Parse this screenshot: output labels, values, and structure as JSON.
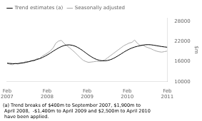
{
  "chart_data": {
    "type": "line",
    "ylabel": "$m",
    "x": [
      0,
      0.8136,
      1.6271,
      2.4407,
      3.2542,
      4.0678,
      4.8814,
      5.6949,
      6.5085,
      7.322,
      8.1356,
      8.9492,
      9.7627,
      10.5763,
      11.3898,
      12.2034,
      13.0169,
      13.8305,
      14.6441,
      15.4576,
      16.2712,
      17.0847,
      17.8983,
      18.7119,
      19.5254,
      20.339,
      21.1525,
      21.9661,
      22.7797,
      23.5932,
      24.4068,
      25.2203,
      26.0339,
      26.8475,
      27.661,
      28.4746,
      29.2881,
      30.1017,
      30.9153,
      31.7288,
      32.5424,
      33.3559,
      34.1695,
      34.9831,
      35.7966,
      36.6102,
      37.4237,
      38.2373,
      39.0508,
      39.8644,
      40.678,
      41.4915,
      42.3051,
      43.1186,
      43.9322,
      44.7458,
      45.5593,
      46.3729,
      47.1864,
      48
    ],
    "xlim": [
      0,
      48
    ],
    "xticks": [
      {
        "value": 0,
        "label": "Feb\n2007"
      },
      {
        "value": 12,
        "label": "Feb\n2008"
      },
      {
        "value": 24,
        "label": "Feb\n2009"
      },
      {
        "value": 36,
        "label": "Feb\n2010"
      },
      {
        "value": 48,
        "label": "Feb\n2011"
      }
    ],
    "ylim": [
      10000,
      29000
    ],
    "yticks": [
      10000,
      16000,
      22000,
      28000
    ],
    "grid": false,
    "legend": "upper left",
    "series": [
      {
        "name": "Trend estimates (a)",
        "color": "#000000",
        "values": [
          15500,
          15430,
          15380,
          15360,
          15400,
          15480,
          15600,
          15760,
          15950,
          16150,
          16380,
          16600,
          16870,
          17200,
          17600,
          18050,
          18550,
          19080,
          19580,
          20050,
          20450,
          20750,
          20920,
          20950,
          20830,
          20580,
          20200,
          19720,
          19160,
          18560,
          17970,
          17430,
          16970,
          16610,
          16360,
          16230,
          16210,
          16310,
          16530,
          16850,
          17280,
          17760,
          18270,
          18780,
          19260,
          19680,
          20030,
          20310,
          20530,
          20710,
          20870,
          20990,
          21020,
          20970,
          20860,
          20720,
          20580,
          20450,
          20340,
          20250
        ]
      },
      {
        "name": "Seasonally adjusted",
        "color": "#aaaaaa",
        "values": [
          15480,
          15200,
          15050,
          15500,
          15250,
          15700,
          15650,
          16050,
          15950,
          16350,
          16150,
          16900,
          16800,
          17600,
          18100,
          18600,
          19200,
          20100,
          21500,
          22100,
          22300,
          21400,
          20700,
          20100,
          19400,
          18700,
          17900,
          17100,
          16400,
          16000,
          15750,
          15850,
          15950,
          16100,
          16000,
          16200,
          16500,
          17100,
          17700,
          18300,
          18900,
          19500,
          20100,
          20700,
          21100,
          21500,
          21700,
          22400,
          21400,
          20800,
          20900,
          20400,
          20100,
          19800,
          19400,
          19100,
          18900,
          18800,
          18950,
          19100
        ]
      }
    ],
    "footnote": [
      "(a) Trend breaks of $400m to September 2007, $1,900m to",
      " April 2008,  -$1,400m to April 2009 and $2,500m to April 2010",
      " have been applied."
    ]
  }
}
